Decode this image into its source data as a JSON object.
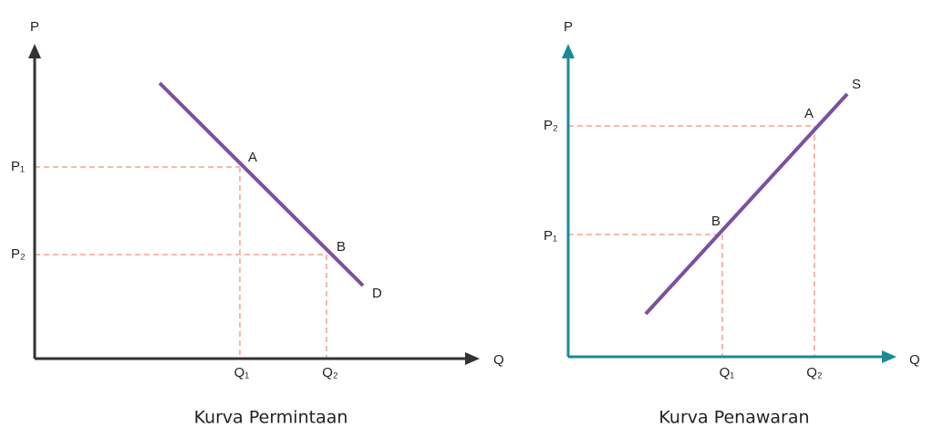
{
  "demand": {
    "y_axis": "P",
    "x_axis": "Q",
    "p1": "P₁",
    "p2": "P₂",
    "q1": "Q₁",
    "q2": "Q₂",
    "point_a": "A",
    "point_b": "B",
    "curve": "D",
    "caption": "Kurva Permintaan"
  },
  "supply": {
    "y_axis": "P",
    "x_axis": "Q",
    "p2": "P₂",
    "p1": "P₁",
    "q1": "Q₁",
    "q2": "Q₂",
    "point_a": "A",
    "point_b": "B",
    "curve": "S",
    "caption": "Kurva Penawaran"
  }
}
